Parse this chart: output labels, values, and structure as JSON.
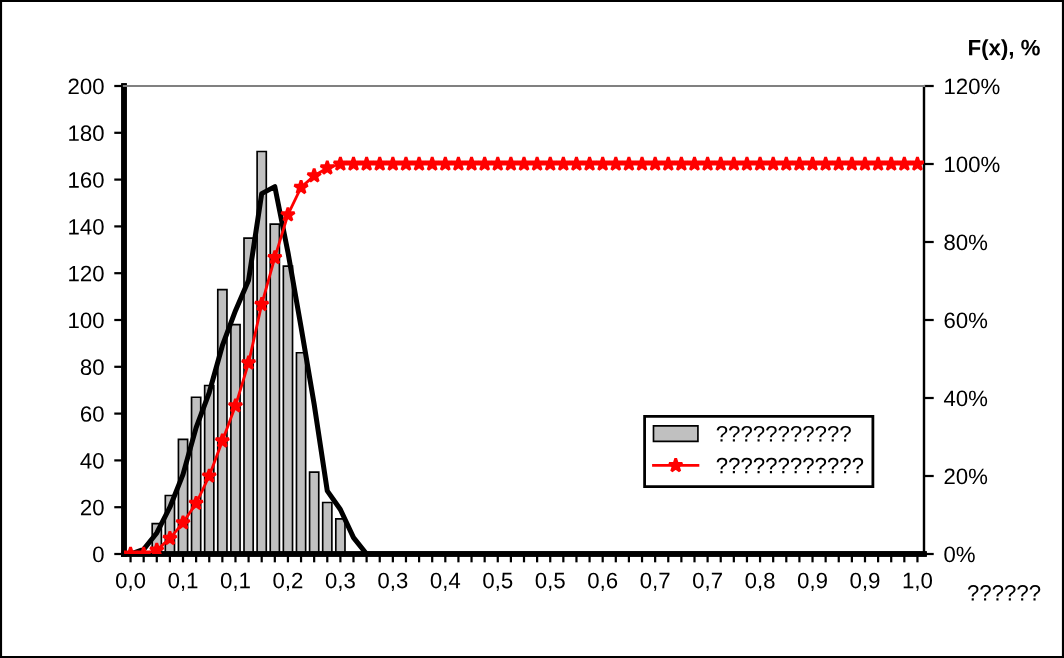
{
  "chart_data": {
    "type": "bar",
    "categories": [
      "0,0",
      null,
      null,
      null,
      "0,1",
      null,
      null,
      null,
      "0,1",
      null,
      null,
      null,
      "0,2",
      null,
      null,
      null,
      "0,3",
      null,
      null,
      null,
      "0,3",
      null,
      null,
      null,
      "0,4",
      null,
      null,
      null,
      "0,5",
      null,
      null,
      null,
      "0,5",
      null,
      null,
      null,
      "0,6",
      null,
      null,
      null,
      "0,7",
      null,
      null,
      null,
      "0,7",
      null,
      null,
      null,
      "0,8",
      null,
      null,
      null,
      "0,9",
      null,
      null,
      null,
      "0,9",
      null,
      null,
      null,
      "1,0"
    ],
    "xlabel": "??????",
    "y2label": "F(x), %",
    "ylim": [
      0,
      200
    ],
    "yticks": [
      0,
      20,
      40,
      60,
      80,
      100,
      120,
      140,
      160,
      180,
      200
    ],
    "y2lim": [
      0,
      120
    ],
    "y2ticks": [
      {
        "value": 0,
        "label": "0%"
      },
      {
        "value": 20,
        "label": "20%"
      },
      {
        "value": 40,
        "label": "40%"
      },
      {
        "value": 60,
        "label": "60%"
      },
      {
        "value": 80,
        "label": "80%"
      },
      {
        "value": 100,
        "label": "100%"
      },
      {
        "value": 120,
        "label": "120%"
      }
    ],
    "grid": false,
    "legend": "bottom right",
    "series": [
      {
        "name": "???????????",
        "color": "#c0c0c0",
        "values": [
          null,
          null,
          13,
          25,
          49,
          67,
          72,
          113,
          98,
          135,
          172,
          141,
          123,
          86,
          35,
          22,
          15,
          null,
          null,
          null,
          null,
          null,
          null,
          null,
          null,
          null,
          null,
          null,
          null,
          null,
          null,
          null,
          null,
          null,
          null,
          null,
          null,
          null,
          null,
          null,
          null,
          null,
          null,
          null,
          null,
          null,
          null,
          null,
          null,
          null,
          null,
          null,
          null,
          null,
          null,
          null,
          null,
          null,
          null,
          null,
          null
        ]
      },
      {
        "type": "line",
        "color": "#000000",
        "marker": "none",
        "values": [
          0,
          2,
          9,
          20,
          34,
          54,
          69,
          89,
          104,
          117,
          154,
          157,
          129,
          97,
          64,
          27,
          19,
          7,
          0,
          0,
          0,
          0,
          0,
          0,
          0,
          0,
          0,
          0,
          0,
          0,
          0,
          0,
          0,
          0,
          0,
          0,
          0,
          0,
          0,
          0,
          0,
          0,
          0,
          0,
          0,
          0,
          0,
          0,
          0,
          0,
          0,
          0,
          0,
          0,
          0,
          0,
          0,
          0,
          0,
          0,
          0
        ]
      },
      {
        "type": "line",
        "name": "????????????",
        "color": "#ff0000",
        "marker": "star",
        "axis": "y2",
        "values": [
          0,
          0,
          1,
          4,
          8,
          13,
          20,
          29,
          38,
          49,
          64,
          76,
          87,
          94,
          97,
          99,
          100,
          100,
          100,
          100,
          100,
          100,
          100,
          100,
          100,
          100,
          100,
          100,
          100,
          100,
          100,
          100,
          100,
          100,
          100,
          100,
          100,
          100,
          100,
          100,
          100,
          100,
          100,
          100,
          100,
          100,
          100,
          100,
          100,
          100,
          100,
          100,
          100,
          100,
          100,
          100,
          100,
          100,
          100,
          100,
          100
        ]
      }
    ]
  }
}
